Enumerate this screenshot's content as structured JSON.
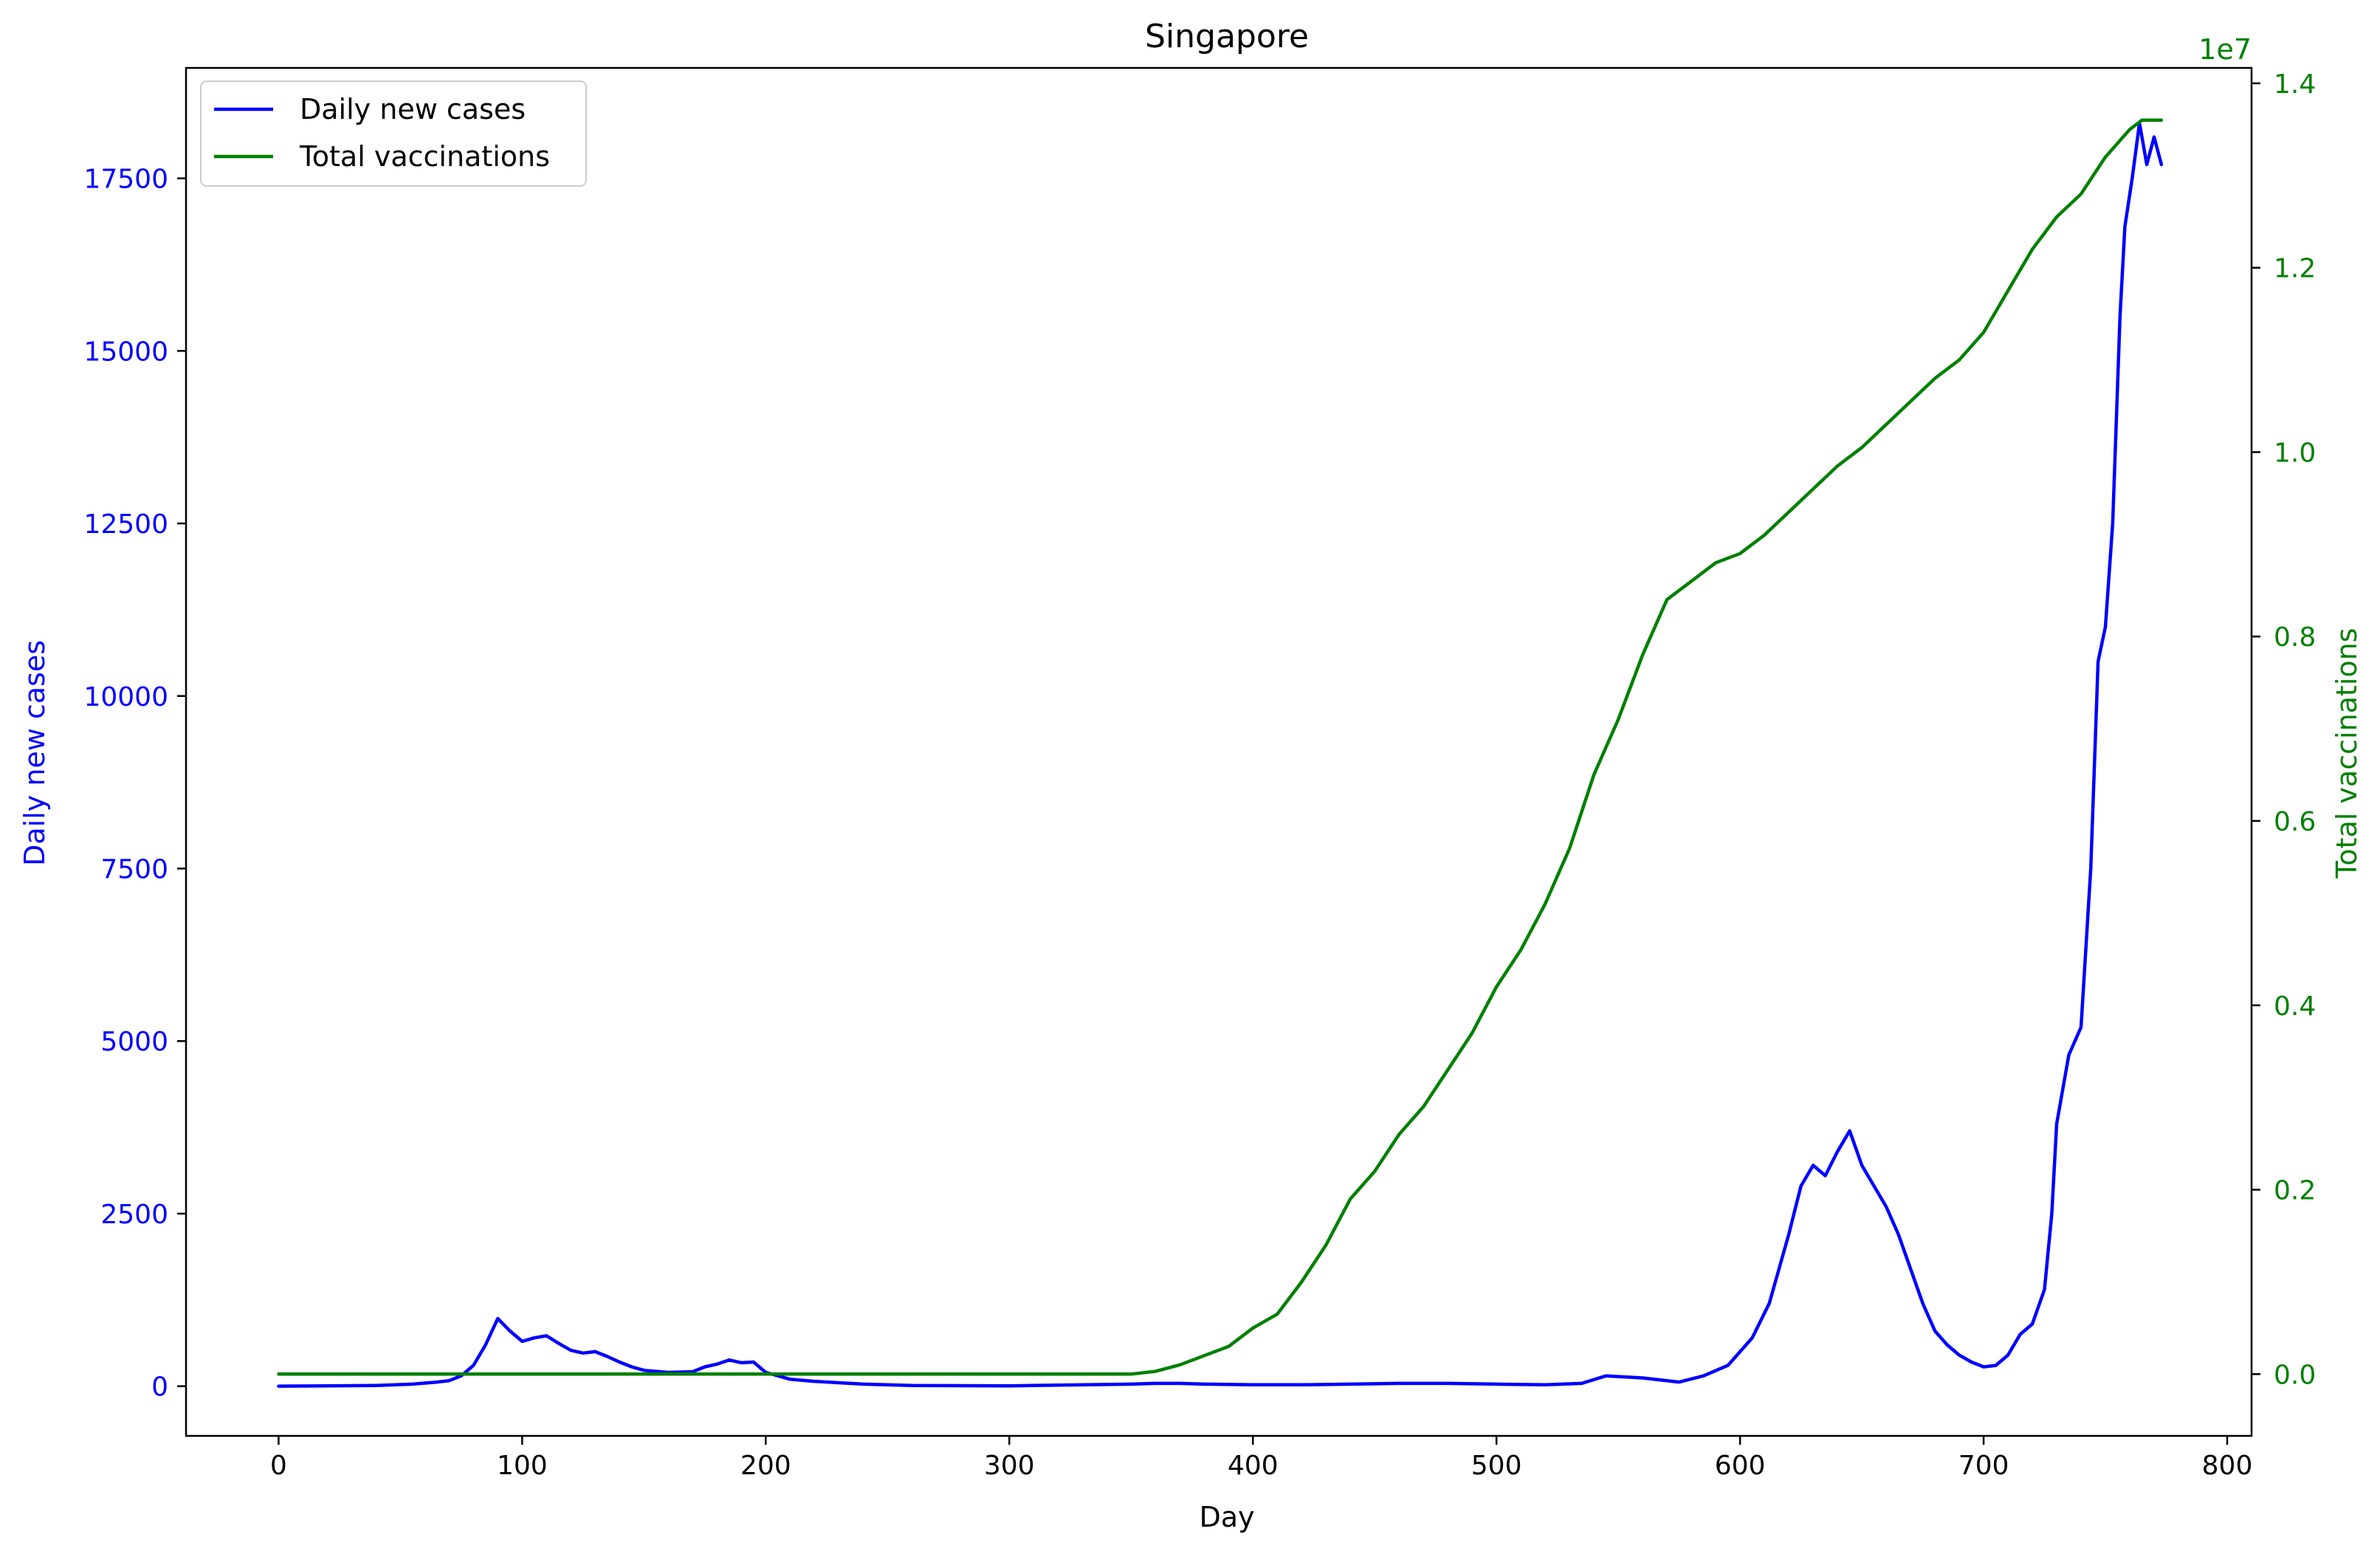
{
  "chart_data": {
    "type": "line",
    "title": "Singapore",
    "xlabel": "Day",
    "ylabel_left": "Daily new cases",
    "ylabel_right": "Total vaccinations",
    "right_axis_offset_text": "1e7",
    "xlim": [
      -38,
      810
    ],
    "ylim_left": [
      -720,
      19100
    ],
    "ylim_right": [
      -0.067,
      1.4167
    ],
    "x_ticks": [
      0,
      100,
      200,
      300,
      400,
      500,
      600,
      700,
      800
    ],
    "y_left_ticks": [
      0,
      2500,
      5000,
      7500,
      10000,
      12500,
      15000,
      17500
    ],
    "y_right_ticks": [
      0.0,
      0.2,
      0.4,
      0.6,
      0.8,
      1.0,
      1.2,
      1.4
    ],
    "y_right_tick_labels": [
      "0.0",
      "0.2",
      "0.4",
      "0.6",
      "0.8",
      "1.0",
      "1.2",
      "1.4"
    ],
    "legend_position": "upper-left",
    "grid": false,
    "colors": {
      "left": "#0000ff",
      "right": "#008000",
      "axis": "#000000"
    },
    "series": [
      {
        "name": "Daily new cases",
        "axis": "left",
        "color": "#0000ff",
        "points": [
          [
            0,
            0
          ],
          [
            20,
            5
          ],
          [
            40,
            10
          ],
          [
            55,
            30
          ],
          [
            65,
            60
          ],
          [
            70,
            80
          ],
          [
            75,
            150
          ],
          [
            80,
            300
          ],
          [
            85,
            600
          ],
          [
            90,
            980
          ],
          [
            95,
            800
          ],
          [
            100,
            650
          ],
          [
            105,
            700
          ],
          [
            110,
            730
          ],
          [
            115,
            620
          ],
          [
            120,
            520
          ],
          [
            125,
            480
          ],
          [
            130,
            500
          ],
          [
            135,
            430
          ],
          [
            140,
            350
          ],
          [
            145,
            280
          ],
          [
            150,
            230
          ],
          [
            160,
            200
          ],
          [
            170,
            210
          ],
          [
            175,
            280
          ],
          [
            180,
            320
          ],
          [
            185,
            380
          ],
          [
            190,
            340
          ],
          [
            195,
            350
          ],
          [
            200,
            200
          ],
          [
            210,
            100
          ],
          [
            220,
            70
          ],
          [
            230,
            50
          ],
          [
            240,
            30
          ],
          [
            260,
            10
          ],
          [
            300,
            5
          ],
          [
            350,
            30
          ],
          [
            360,
            40
          ],
          [
            370,
            40
          ],
          [
            380,
            30
          ],
          [
            400,
            20
          ],
          [
            420,
            20
          ],
          [
            440,
            30
          ],
          [
            460,
            40
          ],
          [
            480,
            40
          ],
          [
            500,
            30
          ],
          [
            520,
            20
          ],
          [
            535,
            40
          ],
          [
            545,
            150
          ],
          [
            560,
            120
          ],
          [
            575,
            60
          ],
          [
            585,
            150
          ],
          [
            595,
            300
          ],
          [
            605,
            700
          ],
          [
            612,
            1200
          ],
          [
            620,
            2200
          ],
          [
            625,
            2900
          ],
          [
            630,
            3200
          ],
          [
            635,
            3050
          ],
          [
            640,
            3400
          ],
          [
            645,
            3700
          ],
          [
            650,
            3200
          ],
          [
            655,
            2900
          ],
          [
            660,
            2600
          ],
          [
            665,
            2200
          ],
          [
            670,
            1700
          ],
          [
            675,
            1200
          ],
          [
            680,
            800
          ],
          [
            685,
            600
          ],
          [
            690,
            450
          ],
          [
            695,
            350
          ],
          [
            700,
            280
          ],
          [
            705,
            300
          ],
          [
            710,
            450
          ],
          [
            715,
            750
          ],
          [
            720,
            900
          ],
          [
            725,
            1400
          ],
          [
            728,
            2500
          ],
          [
            730,
            3800
          ],
          [
            735,
            4800
          ],
          [
            740,
            5200
          ],
          [
            744,
            7500
          ],
          [
            747,
            10500
          ],
          [
            750,
            11000
          ],
          [
            753,
            12500
          ],
          [
            756,
            15500
          ],
          [
            758,
            16800
          ],
          [
            761,
            17500
          ],
          [
            764,
            18300
          ],
          [
            767,
            17700
          ],
          [
            770,
            18100
          ],
          [
            773,
            17700
          ]
        ]
      },
      {
        "name": "Total vaccinations",
        "axis": "right",
        "color": "#008000",
        "points": [
          [
            0,
            0
          ],
          [
            350,
            0
          ],
          [
            360,
            0.003
          ],
          [
            370,
            0.01
          ],
          [
            380,
            0.02
          ],
          [
            390,
            0.03
          ],
          [
            400,
            0.05
          ],
          [
            410,
            0.065
          ],
          [
            420,
            0.1
          ],
          [
            430,
            0.14
          ],
          [
            440,
            0.19
          ],
          [
            450,
            0.22
          ],
          [
            460,
            0.26
          ],
          [
            470,
            0.29
          ],
          [
            480,
            0.33
          ],
          [
            490,
            0.37
          ],
          [
            500,
            0.42
          ],
          [
            510,
            0.46
          ],
          [
            520,
            0.51
          ],
          [
            530,
            0.57
          ],
          [
            540,
            0.65
          ],
          [
            550,
            0.71
          ],
          [
            560,
            0.78
          ],
          [
            570,
            0.84
          ],
          [
            580,
            0.86
          ],
          [
            590,
            0.88
          ],
          [
            600,
            0.89
          ],
          [
            610,
            0.91
          ],
          [
            620,
            0.935
          ],
          [
            630,
            0.96
          ],
          [
            640,
            0.985
          ],
          [
            650,
            1.005
          ],
          [
            660,
            1.03
          ],
          [
            670,
            1.055
          ],
          [
            680,
            1.08
          ],
          [
            690,
            1.1
          ],
          [
            700,
            1.13
          ],
          [
            710,
            1.175
          ],
          [
            720,
            1.22
          ],
          [
            730,
            1.255
          ],
          [
            740,
            1.28
          ],
          [
            750,
            1.32
          ],
          [
            760,
            1.35
          ],
          [
            765,
            1.36
          ],
          [
            773,
            1.36
          ]
        ]
      }
    ]
  }
}
